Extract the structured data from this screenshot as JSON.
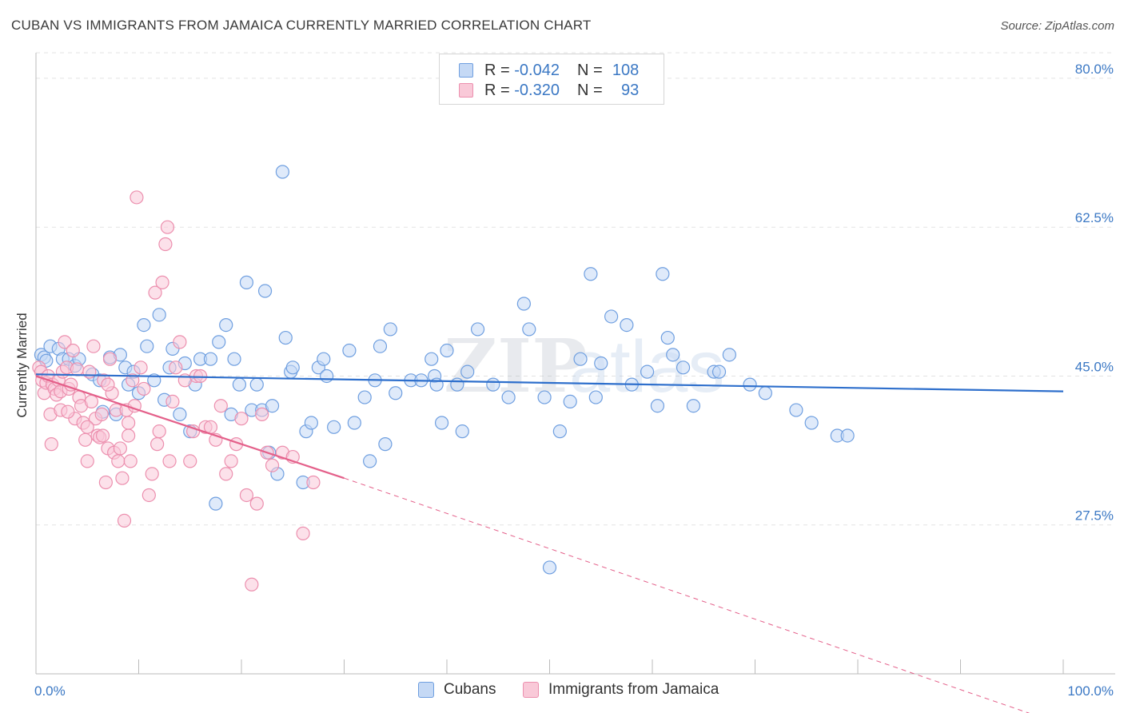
{
  "header": {
    "title": "CUBAN VS IMMIGRANTS FROM JAMAICA CURRENTLY MARRIED CORRELATION CHART",
    "source": "Source: ZipAtlas.com"
  },
  "legend": {
    "rows": [
      {
        "r_label": "R =",
        "r_value": "-0.042",
        "n_label": "N =",
        "n_value": "108"
      },
      {
        "r_label": "R =",
        "r_value": "-0.320",
        "n_label": "N =",
        "n_value": "93"
      }
    ]
  },
  "colors": {
    "blue_fill": "#c5d9f5",
    "blue_stroke": "#6f9fe0",
    "blue_line": "#2e6fcc",
    "pink_fill": "#f9c9d8",
    "pink_stroke": "#ec8fae",
    "pink_line": "#e4608a",
    "tick_text": "#3b78c4",
    "grid": "#e3e3e3"
  },
  "chart_data": {
    "type": "scatter",
    "title": "CUBAN VS IMMIGRANTS FROM JAMAICA CURRENTLY MARRIED CORRELATION CHART",
    "xlabel": "",
    "ylabel": "Currently Married",
    "xlim": [
      0,
      100
    ],
    "ylim": [
      10,
      83
    ],
    "x_tick_labels": [
      "0.0%",
      "100.0%"
    ],
    "y_ticks": [
      27.5,
      45.0,
      62.5,
      80.0
    ],
    "y_tick_labels": [
      "27.5%",
      "45.0%",
      "62.5%",
      "80.0%"
    ],
    "grid": true,
    "legend_position": "bottom-center",
    "watermark": "ZIPatlas",
    "series": [
      {
        "name": "Cubans",
        "color": "#6f9fe0",
        "trend": {
          "x": [
            0,
            100
          ],
          "y": [
            45.2,
            43.2
          ]
        },
        "points": [
          [
            0.5,
            47.5
          ],
          [
            0.8,
            47.2
          ],
          [
            1.0,
            46.8
          ],
          [
            1.4,
            48.5
          ],
          [
            2.2,
            48.2
          ],
          [
            2.6,
            47.0
          ],
          [
            3.2,
            47.0
          ],
          [
            3.8,
            46.2
          ],
          [
            4.2,
            47.0
          ],
          [
            5.5,
            45.2
          ],
          [
            6.2,
            44.5
          ],
          [
            6.5,
            40.8
          ],
          [
            7.2,
            47.2
          ],
          [
            7.8,
            40.5
          ],
          [
            8.2,
            47.5
          ],
          [
            8.7,
            46.0
          ],
          [
            9.0,
            44.0
          ],
          [
            9.5,
            45.5
          ],
          [
            10.0,
            43.0
          ],
          [
            10.5,
            51.0
          ],
          [
            10.8,
            48.5
          ],
          [
            11.5,
            44.5
          ],
          [
            12.0,
            52.2
          ],
          [
            12.5,
            42.2
          ],
          [
            13.0,
            46.0
          ],
          [
            13.3,
            48.2
          ],
          [
            14.0,
            40.5
          ],
          [
            14.5,
            46.5
          ],
          [
            15.0,
            38.5
          ],
          [
            15.5,
            44.0
          ],
          [
            16.0,
            47.0
          ],
          [
            17.0,
            47.0
          ],
          [
            17.5,
            30.0
          ],
          [
            17.8,
            49.0
          ],
          [
            18.5,
            51.0
          ],
          [
            19.0,
            40.5
          ],
          [
            19.3,
            47.0
          ],
          [
            19.8,
            44.0
          ],
          [
            20.5,
            56.0
          ],
          [
            21.0,
            41.0
          ],
          [
            21.5,
            44.0
          ],
          [
            22.0,
            41.0
          ],
          [
            22.3,
            55.0
          ],
          [
            22.7,
            36.0
          ],
          [
            23.0,
            41.5
          ],
          [
            23.5,
            33.5
          ],
          [
            24.0,
            69.0
          ],
          [
            24.3,
            49.5
          ],
          [
            24.8,
            45.5
          ],
          [
            25.0,
            46.0
          ],
          [
            26.0,
            32.5
          ],
          [
            26.3,
            38.5
          ],
          [
            26.8,
            39.5
          ],
          [
            27.5,
            46.0
          ],
          [
            28.0,
            47.0
          ],
          [
            28.3,
            45.0
          ],
          [
            29.0,
            39.0
          ],
          [
            30.5,
            48.0
          ],
          [
            31.0,
            39.5
          ],
          [
            32.0,
            42.5
          ],
          [
            32.5,
            35.0
          ],
          [
            33.0,
            44.5
          ],
          [
            33.5,
            48.5
          ],
          [
            34.0,
            37.0
          ],
          [
            34.5,
            50.5
          ],
          [
            35.0,
            43.0
          ],
          [
            36.5,
            44.5
          ],
          [
            37.5,
            44.5
          ],
          [
            38.5,
            47.0
          ],
          [
            38.8,
            45.0
          ],
          [
            39.0,
            44.0
          ],
          [
            39.5,
            39.5
          ],
          [
            40.0,
            48.0
          ],
          [
            41.0,
            44.0
          ],
          [
            41.5,
            38.5
          ],
          [
            42.0,
            45.5
          ],
          [
            43.0,
            50.5
          ],
          [
            44.5,
            44.0
          ],
          [
            46.0,
            42.5
          ],
          [
            47.5,
            53.5
          ],
          [
            48.0,
            50.5
          ],
          [
            49.5,
            42.5
          ],
          [
            50.0,
            22.5
          ],
          [
            51.0,
            38.5
          ],
          [
            52.0,
            42.0
          ],
          [
            53.0,
            47.0
          ],
          [
            54.0,
            57.0
          ],
          [
            54.5,
            42.5
          ],
          [
            55.0,
            46.5
          ],
          [
            56.0,
            52.0
          ],
          [
            57.5,
            51.0
          ],
          [
            58.0,
            44.0
          ],
          [
            59.5,
            45.5
          ],
          [
            60.5,
            41.5
          ],
          [
            61.0,
            57.0
          ],
          [
            61.5,
            49.5
          ],
          [
            62.0,
            47.5
          ],
          [
            63.0,
            46.0
          ],
          [
            64.0,
            41.5
          ],
          [
            66.0,
            45.5
          ],
          [
            66.5,
            45.5
          ],
          [
            67.5,
            47.5
          ],
          [
            69.5,
            44.0
          ],
          [
            71.0,
            43.0
          ],
          [
            74.0,
            41.0
          ],
          [
            75.5,
            39.5
          ],
          [
            78.0,
            38.0
          ],
          [
            79.0,
            38.0
          ]
        ]
      },
      {
        "name": "Immigrants from Jamaica",
        "color": "#ec8fae",
        "trend": {
          "x": [
            0,
            30
          ],
          "y": [
            45.0,
            33.0
          ]
        },
        "trend_dashed": {
          "x": [
            30,
            100
          ],
          "y": [
            33.0,
            4.0
          ]
        },
        "points": [
          [
            0.3,
            46.0
          ],
          [
            0.5,
            45.5
          ],
          [
            0.6,
            44.5
          ],
          [
            0.8,
            43.0
          ],
          [
            1.0,
            44.2
          ],
          [
            1.2,
            45.0
          ],
          [
            1.4,
            40.5
          ],
          [
            1.6,
            44.0
          ],
          [
            1.8,
            43.5
          ],
          [
            2.0,
            42.8
          ],
          [
            2.2,
            44.5
          ],
          [
            2.4,
            43.2
          ],
          [
            2.6,
            45.5
          ],
          [
            2.8,
            49.0
          ],
          [
            3.0,
            46.0
          ],
          [
            3.2,
            43.5
          ],
          [
            3.4,
            44.0
          ],
          [
            3.6,
            48.0
          ],
          [
            3.8,
            40.0
          ],
          [
            4.0,
            45.8
          ],
          [
            4.2,
            42.5
          ],
          [
            4.4,
            41.5
          ],
          [
            4.6,
            39.5
          ],
          [
            4.8,
            37.5
          ],
          [
            5.0,
            35.0
          ],
          [
            5.2,
            45.5
          ],
          [
            5.4,
            42.0
          ],
          [
            5.6,
            48.5
          ],
          [
            5.8,
            40.0
          ],
          [
            6.0,
            38.0
          ],
          [
            6.2,
            37.8
          ],
          [
            6.4,
            40.5
          ],
          [
            6.6,
            44.5
          ],
          [
            6.8,
            32.5
          ],
          [
            7.0,
            36.5
          ],
          [
            7.2,
            47.0
          ],
          [
            7.4,
            43.0
          ],
          [
            7.6,
            36.0
          ],
          [
            7.8,
            41.0
          ],
          [
            8.0,
            35.0
          ],
          [
            8.2,
            36.5
          ],
          [
            8.4,
            33.0
          ],
          [
            8.6,
            28.0
          ],
          [
            8.8,
            41.0
          ],
          [
            9.0,
            39.5
          ],
          [
            9.2,
            35.0
          ],
          [
            9.4,
            44.5
          ],
          [
            9.6,
            41.5
          ],
          [
            9.8,
            66.0
          ],
          [
            10.2,
            46.0
          ],
          [
            10.5,
            43.5
          ],
          [
            11.0,
            31.0
          ],
          [
            11.3,
            33.5
          ],
          [
            11.6,
            54.8
          ],
          [
            12.0,
            38.5
          ],
          [
            12.3,
            56.0
          ],
          [
            12.6,
            60.5
          ],
          [
            12.8,
            62.5
          ],
          [
            13.0,
            35.0
          ],
          [
            13.3,
            42.0
          ],
          [
            13.6,
            46.0
          ],
          [
            14.0,
            49.0
          ],
          [
            14.5,
            44.5
          ],
          [
            15.0,
            35.0
          ],
          [
            15.3,
            38.5
          ],
          [
            15.6,
            45.0
          ],
          [
            16.0,
            45.0
          ],
          [
            16.5,
            39.0
          ],
          [
            17.0,
            39.0
          ],
          [
            17.5,
            37.5
          ],
          [
            18.0,
            41.5
          ],
          [
            18.5,
            33.5
          ],
          [
            19.0,
            35.0
          ],
          [
            19.5,
            37.0
          ],
          [
            20.0,
            40.0
          ],
          [
            20.5,
            31.0
          ],
          [
            21.0,
            20.5
          ],
          [
            21.5,
            30.0
          ],
          [
            22.0,
            40.5
          ],
          [
            22.5,
            36.0
          ],
          [
            23.0,
            34.5
          ],
          [
            24.0,
            36.0
          ],
          [
            25.0,
            35.5
          ],
          [
            26.0,
            26.5
          ],
          [
            27.0,
            32.5
          ],
          [
            9.0,
            38.0
          ],
          [
            11.8,
            37.0
          ],
          [
            2.4,
            41.0
          ],
          [
            5.0,
            39.0
          ],
          [
            6.5,
            38.0
          ],
          [
            3.1,
            40.8
          ],
          [
            7.0,
            44.0
          ],
          [
            1.5,
            37.0
          ]
        ]
      }
    ]
  }
}
